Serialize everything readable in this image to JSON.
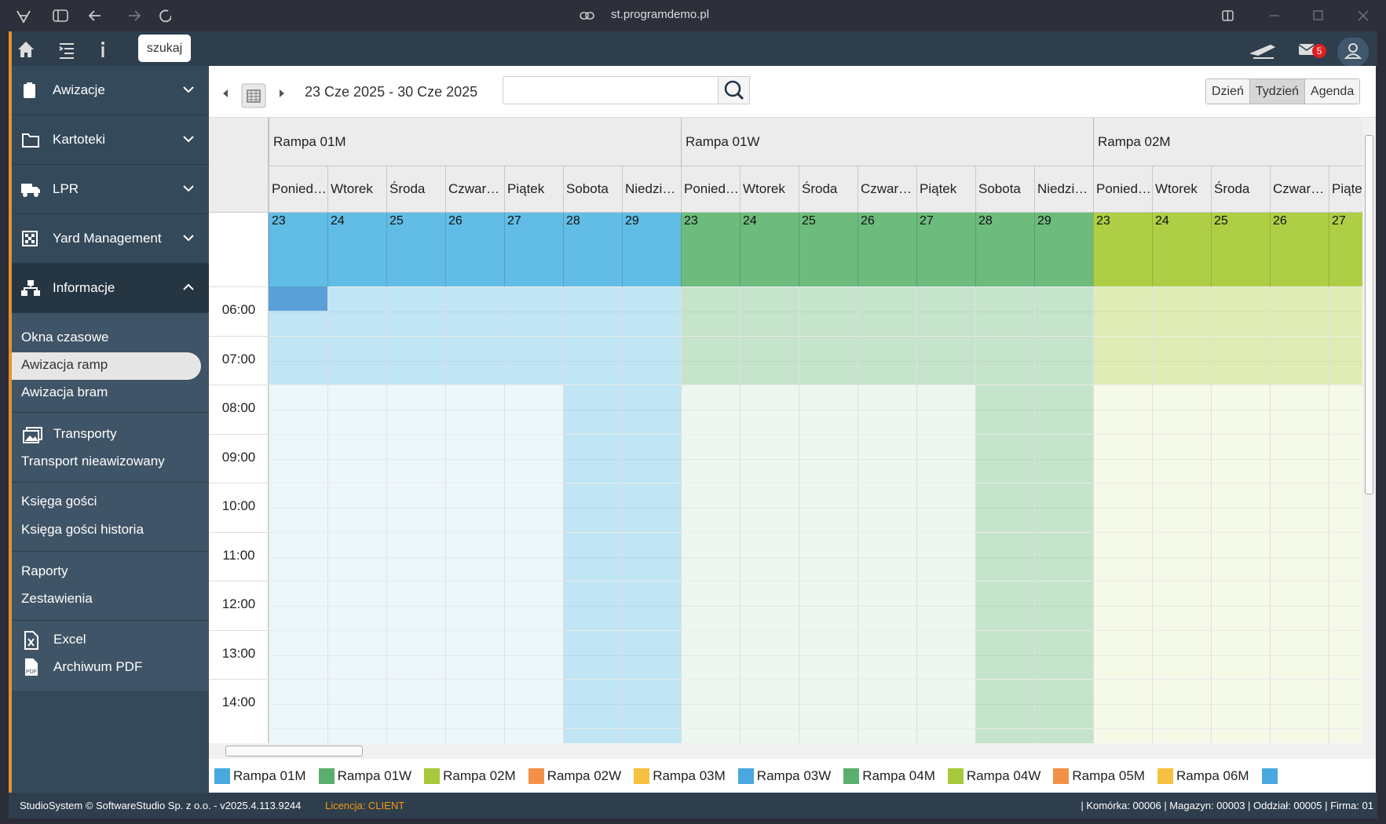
{
  "browser": {
    "url": "st.programdemo.pl"
  },
  "topbar": {
    "search_tooltip": "szukaj",
    "mail_badge": "5"
  },
  "sidebar": {
    "menu": [
      "Awizacje",
      "Kartoteki",
      "LPR",
      "Yard Management",
      "Informacje"
    ],
    "submenu": [
      [
        "Okna czasowe",
        "Awizacja ramp",
        "Awizacja bram"
      ],
      [
        "Transporty",
        "Transport nieawizowany"
      ],
      [
        "Księga gości",
        "Księga gości historia"
      ],
      [
        "Raporty",
        "Zestawienia"
      ],
      [
        "Excel",
        "Archiwum PDF"
      ]
    ]
  },
  "calendar": {
    "date_range": "23 Cze 2025 - 30 Cze 2025",
    "views": [
      "Dzień",
      "Tydzień",
      "Agenda"
    ],
    "ramps": [
      {
        "name": "Rampa 01M",
        "color": "#62bde6"
      },
      {
        "name": "Rampa 01W",
        "color": "#6dbb7d"
      },
      {
        "name": "Rampa 02M",
        "color": "#aecf45"
      }
    ],
    "days": [
      "Ponied…",
      "Wtorek",
      "Środa",
      "Czwar…",
      "Piątek",
      "Sobota",
      "Niedzi…"
    ],
    "dates": [
      23,
      24,
      25,
      26,
      27,
      28,
      29
    ],
    "hours": [
      "06:00",
      "07:00",
      "08:00",
      "09:00",
      "10:00",
      "11:00",
      "12:00",
      "13:00",
      "14:00"
    ]
  },
  "legend": [
    {
      "name": "Rampa 01M",
      "color": "#4aa8e0"
    },
    {
      "name": "Rampa 01W",
      "color": "#5aae6e"
    },
    {
      "name": "Rampa 02M",
      "color": "#a6c83a"
    },
    {
      "name": "Rampa 02W",
      "color": "#f39048"
    },
    {
      "name": "Rampa 03M",
      "color": "#f8c040"
    },
    {
      "name": "Rampa 03W",
      "color": "#4aa8e0"
    },
    {
      "name": "Rampa 04M",
      "color": "#5aae6e"
    },
    {
      "name": "Rampa 04W",
      "color": "#a6c83a"
    },
    {
      "name": "Rampa 05M",
      "color": "#f39048"
    },
    {
      "name": "Rampa 06M",
      "color": "#f8c040"
    }
  ],
  "footer": {
    "copyright": "StudioSystem © SoftwareStudio Sp. z o.o. - v2025.4.113.9244",
    "license": "Licencja: CLIENT",
    "info": "| Komórka: 00006 | Magazyn: 00003 | Oddział: 00005 | Firma: 01"
  }
}
